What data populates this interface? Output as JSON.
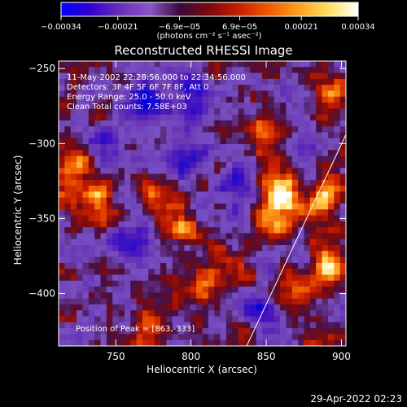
{
  "chart_data": {
    "type": "heatmap",
    "title": "Reconstructed RHESSI Image",
    "xlabel": "Heliocentric X (arcsec)",
    "ylabel": "Heliocentric Y (arcsec)",
    "xlim": [
      712,
      903
    ],
    "ylim": [
      -435,
      -245
    ],
    "x_ticks": [
      750,
      800,
      850,
      900
    ],
    "y_ticks": [
      -250,
      -300,
      -350,
      -400
    ],
    "x_tick_labels": [
      "750",
      "800",
      "850",
      "900"
    ],
    "y_tick_labels": [
      "−250",
      "−300",
      "−350",
      "−400"
    ],
    "grid": false,
    "colorbar": {
      "position": "top",
      "range": [
        -0.00034,
        0.00034
      ],
      "ticks": [
        -0.00034,
        -0.00021,
        -6.9e-05,
        6.9e-05,
        0.00021,
        0.00034
      ],
      "tick_labels": [
        "−0.00034",
        "−0.00021",
        "−6.9e−05",
        "6.9e−05",
        "0.00021",
        "0.00034"
      ],
      "unit_label": "(photons cm⁻² s⁻¹ asec⁻²)",
      "colors": [
        "#0000ff",
        "#3300cc",
        "#6a2fb8",
        "#8a55c8",
        "#3a0a3a",
        "#7a0a0a",
        "#c81e00",
        "#f05a00",
        "#ffa01e",
        "#ffe060",
        "#ffffff"
      ]
    },
    "annotations": [
      "11-May-2002 22:28:56.000 to 22:34:56.000",
      "Detectors: 3F 4F 5F 6F 7F 8F, Att 0",
      "Energy Range: 25.0 - 50.0 keV",
      "Clean     Total counts: 7.58E+03"
    ],
    "peak_label": "Position of Peak = [863,-333]",
    "peak": [
      863,
      -333
    ],
    "limb_line": [
      [
        837,
        -435
      ],
      [
        903,
        -294
      ]
    ],
    "sources": [
      {
        "x": 862,
        "y": -330,
        "w": 1.0
      },
      {
        "x": 858,
        "y": -352,
        "w": 0.7
      },
      {
        "x": 893,
        "y": -385,
        "w": 0.9
      },
      {
        "x": 888,
        "y": -338,
        "w": 0.6
      },
      {
        "x": 870,
        "y": -403,
        "w": 0.6
      },
      {
        "x": 895,
        "y": -268,
        "w": 0.65
      },
      {
        "x": 722,
        "y": -318,
        "w": 0.75
      },
      {
        "x": 738,
        "y": -340,
        "w": 0.6
      },
      {
        "x": 783,
        "y": -335,
        "w": 0.55
      },
      {
        "x": 790,
        "y": -358,
        "w": 0.5
      },
      {
        "x": 805,
        "y": -395,
        "w": 0.55
      },
      {
        "x": 820,
        "y": -380,
        "w": 0.45
      },
      {
        "x": 850,
        "y": -285,
        "w": 0.35
      },
      {
        "x": 772,
        "y": -420,
        "w": 0.4
      }
    ],
    "holes": [
      {
        "x": 770,
        "y": -275,
        "w": 0.9
      },
      {
        "x": 800,
        "y": -262,
        "w": 0.7
      },
      {
        "x": 745,
        "y": -300,
        "w": 0.6
      },
      {
        "x": 795,
        "y": -310,
        "w": 0.7
      },
      {
        "x": 760,
        "y": -368,
        "w": 0.9
      },
      {
        "x": 848,
        "y": -410,
        "w": 0.55
      },
      {
        "x": 875,
        "y": -300,
        "w": 0.5
      },
      {
        "x": 830,
        "y": -330,
        "w": 0.5
      }
    ]
  },
  "date_stamp": "29-Apr-2022 02:23"
}
